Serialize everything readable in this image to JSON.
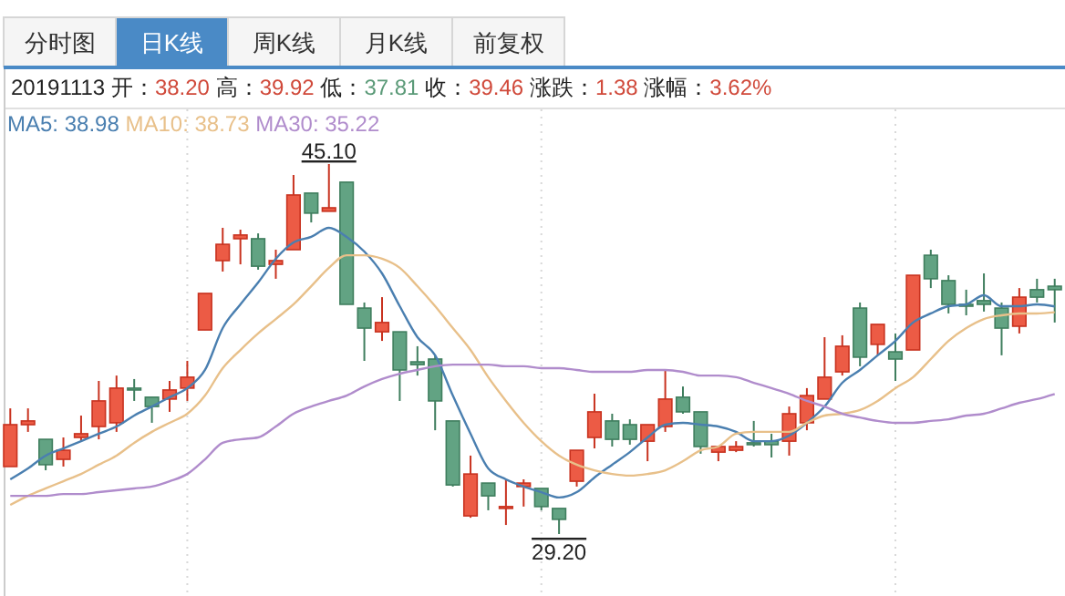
{
  "chart_data": {
    "type": "candlestick",
    "title": "20191113 开：38.20 高：39.92 低：37.81 收：39.46 涨跌：1.38 涨幅：3.62%",
    "categories": [
      null,
      null,
      null,
      null,
      null,
      null,
      null,
      null,
      null,
      null,
      null,
      null,
      null,
      null,
      null,
      null,
      null,
      null,
      null,
      null,
      null,
      null,
      null,
      null,
      null,
      null,
      null,
      null,
      null,
      null,
      null,
      null,
      null,
      null,
      null,
      null,
      null,
      null,
      null,
      null,
      null,
      null,
      null,
      null,
      null,
      null,
      null,
      null,
      null,
      null,
      null,
      null,
      null,
      null,
      null,
      null,
      null,
      null,
      null,
      null
    ],
    "ohlc": [
      [
        32.1,
        34.6,
        32.1,
        33.9
      ],
      [
        33.9,
        34.6,
        33.59,
        34.06
      ],
      [
        33.27,
        33.27,
        31.94,
        32.18
      ],
      [
        32.41,
        33.35,
        32.1,
        32.8
      ],
      [
        33.35,
        34.29,
        33.19,
        33.51
      ],
      [
        33.82,
        35.78,
        33.27,
        34.92
      ],
      [
        33.98,
        36.01,
        33.59,
        35.47
      ],
      [
        35.47,
        35.86,
        34.92,
        35.39
      ],
      [
        35.08,
        35.08,
        33.98,
        34.68
      ],
      [
        35.0,
        35.78,
        34.45,
        35.39
      ],
      [
        35.47,
        36.64,
        34.92,
        35.94
      ],
      [
        37.97,
        39.54,
        37.97,
        39.54
      ],
      [
        40.95,
        42.36,
        40.48,
        41.65
      ],
      [
        41.89,
        42.28,
        40.79,
        42.05
      ],
      [
        41.89,
        42.12,
        40.56,
        40.71
      ],
      [
        40.79,
        41.42,
        40.17,
        40.95
      ],
      [
        41.42,
        44.63,
        41.42,
        43.77
      ],
      [
        43.85,
        43.85,
        42.59,
        42.99
      ],
      [
        43.07,
        45.1,
        43.07,
        43.22
      ],
      [
        44.32,
        44.32,
        39.07,
        39.07
      ],
      [
        38.91,
        39.15,
        36.64,
        38.05
      ],
      [
        37.89,
        39.38,
        37.5,
        38.29
      ],
      [
        37.89,
        37.89,
        34.92,
        36.25
      ],
      [
        36.6,
        37.27,
        36.01,
        36.48
      ],
      [
        36.72,
        36.88,
        33.66,
        34.92
      ],
      [
        34.06,
        34.06,
        31.24,
        31.31
      ],
      [
        29.98,
        32.57,
        29.9,
        31.78
      ],
      [
        31.39,
        31.39,
        30.22,
        30.84
      ],
      [
        30.3,
        31.55,
        29.59,
        30.38
      ],
      [
        31.24,
        31.55,
        30.38,
        31.39
      ],
      [
        31.16,
        31.16,
        30.22,
        30.38
      ],
      [
        30.3,
        30.3,
        29.2,
        29.83
      ],
      [
        31.47,
        32.8,
        31.24,
        32.8
      ],
      [
        33.35,
        35.23,
        32.88,
        34.45
      ],
      [
        34.06,
        34.37,
        32.96,
        33.27
      ],
      [
        33.9,
        34.13,
        33.04,
        33.27
      ],
      [
        33.19,
        33.9,
        32.33,
        33.9
      ],
      [
        33.82,
        36.25,
        33.59,
        35.0
      ],
      [
        35.08,
        35.54,
        34.37,
        34.45
      ],
      [
        34.45,
        34.45,
        32.65,
        32.96
      ],
      [
        32.72,
        32.96,
        32.33,
        32.96
      ],
      [
        32.8,
        33.19,
        32.72,
        32.96
      ],
      [
        33.12,
        34.06,
        32.96,
        33.04
      ],
      [
        33.19,
        33.51,
        32.49,
        33.04
      ],
      [
        33.19,
        34.68,
        32.57,
        34.37
      ],
      [
        33.98,
        35.47,
        33.66,
        35.15
      ],
      [
        35.0,
        37.66,
        35.0,
        35.94
      ],
      [
        36.17,
        37.74,
        36.01,
        37.27
      ],
      [
        38.91,
        39.15,
        36.41,
        36.8
      ],
      [
        37.35,
        38.21,
        36.88,
        38.21
      ],
      [
        37.03,
        37.82,
        35.78,
        36.72
      ],
      [
        37.11,
        40.32,
        37.11,
        40.32
      ],
      [
        41.18,
        41.42,
        39.77,
        40.17
      ],
      [
        40.09,
        40.32,
        38.68,
        39.07
      ],
      [
        39.07,
        39.7,
        38.6,
        38.99
      ],
      [
        39.23,
        40.4,
        38.76,
        39.07
      ],
      [
        38.91,
        39.15,
        36.88,
        38.05
      ],
      [
        38.13,
        39.77,
        37.82,
        39.38
      ],
      [
        39.7,
        40.17,
        39.15,
        39.38
      ],
      [
        39.85,
        40.17,
        38.29,
        39.7
      ]
    ],
    "series": [
      {
        "name": "MA5: 38.98",
        "type": "line",
        "color": "#4a7fb0",
        "values": [
          31.55,
          32.02,
          32.57,
          32.88,
          33.19,
          33.51,
          33.82,
          34.29,
          34.68,
          35.08,
          35.47,
          36.25,
          38.05,
          39.07,
          40.01,
          41.03,
          41.73,
          41.97,
          42.36,
          41.97,
          41.34,
          40.4,
          38.99,
          37.66,
          36.88,
          35.15,
          33.51,
          32.02,
          31.55,
          31.24,
          31.0,
          30.77,
          31.0,
          31.63,
          32.18,
          32.72,
          33.35,
          33.9,
          33.98,
          33.9,
          33.82,
          33.59,
          33.19,
          33.19,
          33.43,
          33.98,
          34.68,
          35.7,
          36.25,
          36.88,
          37.5,
          38.29,
          38.68,
          38.99,
          39.07,
          39.46,
          38.99,
          38.99,
          39.07,
          38.98
        ]
      },
      {
        "name": "MA10: 38.73",
        "type": "line",
        "color": "#e8c08a",
        "values": [
          30.45,
          30.84,
          31.16,
          31.47,
          31.78,
          32.18,
          32.57,
          33.12,
          33.59,
          33.98,
          34.37,
          35.15,
          36.33,
          37.11,
          37.82,
          38.44,
          39.07,
          39.85,
          40.64,
          41.18,
          41.18,
          41.03,
          40.64,
          39.85,
          38.99,
          38.05,
          37.11,
          35.94,
          34.92,
          33.98,
          33.19,
          32.57,
          32.18,
          31.94,
          31.78,
          31.71,
          31.78,
          31.94,
          32.33,
          32.8,
          32.96,
          33.51,
          33.59,
          33.59,
          33.59,
          33.98,
          34.29,
          34.37,
          34.53,
          34.92,
          35.47,
          35.94,
          36.72,
          37.5,
          38.05,
          38.44,
          38.6,
          38.68,
          38.68,
          38.73
        ]
      },
      {
        "name": "MA30: 35.22",
        "type": "line",
        "color": "#b08ccc",
        "values": [
          30.84,
          30.84,
          30.84,
          30.92,
          30.92,
          31.0,
          31.08,
          31.16,
          31.24,
          31.47,
          31.78,
          32.41,
          33.12,
          33.27,
          33.35,
          33.82,
          34.37,
          34.68,
          34.92,
          35.15,
          35.54,
          35.86,
          36.09,
          36.25,
          36.41,
          36.48,
          36.48,
          36.48,
          36.41,
          36.41,
          36.33,
          36.33,
          36.25,
          36.17,
          36.17,
          36.17,
          36.25,
          36.25,
          36.17,
          36.01,
          36.01,
          35.94,
          35.7,
          35.47,
          35.23,
          34.92,
          34.68,
          34.37,
          34.21,
          34.06,
          33.98,
          33.98,
          34.06,
          34.13,
          34.29,
          34.37,
          34.6,
          34.84,
          35.0,
          35.22
        ]
      }
    ],
    "annotations": [
      "分时图",
      "日K线",
      "周K线",
      "月K线",
      "前复权",
      {
        "text": "45.10",
        "y": 45.1
      },
      {
        "text": "29.20",
        "y": 29.2
      }
    ],
    "grid": "x",
    "legend": "top left",
    "tick_labels": false
  }
}
